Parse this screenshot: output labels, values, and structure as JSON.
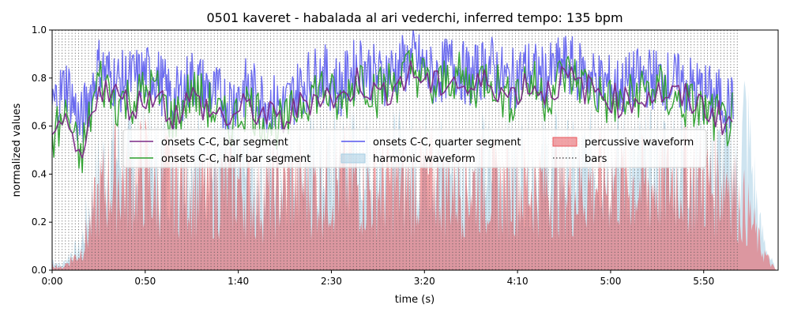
{
  "chart_data": {
    "type": "line",
    "title": "0501 kaveret - habalada al ari vederchi, inferred tempo: 135 bpm",
    "xlabel": "time (s)",
    "ylabel": "normalized values",
    "xlim": [
      0,
      390
    ],
    "ylim": [
      0,
      1.0
    ],
    "xticks": [
      {
        "value": 0,
        "label": "0:00"
      },
      {
        "value": 50,
        "label": "0:50"
      },
      {
        "value": 100,
        "label": "1:40"
      },
      {
        "value": 150,
        "label": "2:30"
      },
      {
        "value": 200,
        "label": "3:20"
      },
      {
        "value": 250,
        "label": "4:10"
      },
      {
        "value": 300,
        "label": "5:00"
      },
      {
        "value": 350,
        "label": "5:50"
      }
    ],
    "yticks": [
      {
        "value": 0.0,
        "label": "0.0"
      },
      {
        "value": 0.2,
        "label": "0.2"
      },
      {
        "value": 0.4,
        "label": "0.4"
      },
      {
        "value": 0.6,
        "label": "0.6"
      },
      {
        "value": 0.8,
        "label": "0.8"
      },
      {
        "value": 1.0,
        "label": "1.0"
      }
    ],
    "grid": false,
    "legend_position": "center",
    "duration_s": 389,
    "bar_period_s": 1.778,
    "series": [
      {
        "name": "onsets C-C, bar segment",
        "kind": "line",
        "color": "#7b2a86",
        "x": [
          0,
          8,
          15,
          25,
          35,
          45,
          55,
          65,
          75,
          85,
          95,
          105,
          115,
          125,
          135,
          145,
          155,
          165,
          175,
          185,
          195,
          205,
          215,
          225,
          235,
          245,
          255,
          265,
          275,
          285,
          295,
          305,
          315,
          325,
          335,
          345,
          355,
          362,
          366
        ],
        "values": [
          0.5,
          0.62,
          0.42,
          0.78,
          0.72,
          0.68,
          0.75,
          0.64,
          0.72,
          0.66,
          0.63,
          0.68,
          0.64,
          0.62,
          0.7,
          0.74,
          0.7,
          0.8,
          0.72,
          0.78,
          0.82,
          0.76,
          0.8,
          0.74,
          0.8,
          0.72,
          0.78,
          0.74,
          0.8,
          0.76,
          0.74,
          0.7,
          0.72,
          0.74,
          0.72,
          0.7,
          0.66,
          0.62,
          0.62
        ]
      },
      {
        "name": "onsets C-C, half bar segment",
        "kind": "line",
        "color": "#2ca02c",
        "x": [
          0,
          8,
          15,
          25,
          35,
          45,
          55,
          65,
          75,
          85,
          95,
          105,
          115,
          125,
          135,
          145,
          155,
          165,
          175,
          185,
          195,
          205,
          215,
          225,
          235,
          245,
          255,
          265,
          275,
          285,
          295,
          305,
          315,
          325,
          335,
          345,
          355,
          362,
          366
        ],
        "values": [
          0.55,
          0.65,
          0.45,
          0.8,
          0.7,
          0.72,
          0.76,
          0.62,
          0.75,
          0.68,
          0.6,
          0.7,
          0.62,
          0.6,
          0.72,
          0.76,
          0.68,
          0.82,
          0.74,
          0.8,
          0.84,
          0.74,
          0.82,
          0.76,
          0.82,
          0.7,
          0.8,
          0.72,
          0.82,
          0.78,
          0.72,
          0.68,
          0.74,
          0.76,
          0.7,
          0.68,
          0.64,
          0.6,
          0.64
        ]
      },
      {
        "name": "onsets C-C, quarter segment",
        "kind": "line",
        "color": "#5555ee",
        "x": [
          0,
          8,
          15,
          25,
          35,
          45,
          55,
          65,
          75,
          85,
          95,
          105,
          115,
          125,
          135,
          145,
          155,
          165,
          175,
          185,
          195,
          205,
          215,
          225,
          235,
          245,
          255,
          265,
          275,
          285,
          295,
          305,
          315,
          325,
          335,
          345,
          355,
          362,
          366
        ],
        "values": [
          0.68,
          0.78,
          0.6,
          0.85,
          0.78,
          0.8,
          0.82,
          0.7,
          0.8,
          0.74,
          0.7,
          0.76,
          0.7,
          0.68,
          0.78,
          0.82,
          0.76,
          0.86,
          0.8,
          0.84,
          0.88,
          0.8,
          0.86,
          0.8,
          0.86,
          0.78,
          0.84,
          0.8,
          0.86,
          0.82,
          0.78,
          0.76,
          0.8,
          0.8,
          0.78,
          0.76,
          0.72,
          0.7,
          0.68
        ]
      },
      {
        "name": "harmonic waveform",
        "kind": "area",
        "color": "#a6cee3",
        "x": [
          0,
          5,
          10,
          15,
          20,
          25,
          30,
          35,
          40,
          45,
          50,
          55,
          60,
          70,
          80,
          90,
          100,
          110,
          120,
          130,
          140,
          150,
          160,
          170,
          180,
          190,
          200,
          210,
          220,
          230,
          240,
          250,
          260,
          270,
          280,
          290,
          300,
          310,
          320,
          330,
          340,
          350,
          355,
          360,
          363,
          366,
          368,
          372,
          375,
          380,
          386,
          389
        ],
        "values": [
          0.05,
          0.02,
          0.08,
          0.1,
          0.3,
          0.45,
          0.5,
          0.55,
          0.48,
          0.5,
          0.55,
          0.46,
          0.52,
          0.55,
          0.5,
          0.48,
          0.5,
          0.42,
          0.46,
          0.5,
          0.48,
          0.5,
          0.52,
          0.46,
          0.5,
          0.48,
          0.52,
          0.5,
          0.48,
          0.5,
          0.46,
          0.5,
          0.48,
          0.5,
          0.46,
          0.5,
          0.52,
          0.5,
          0.48,
          0.52,
          0.55,
          0.5,
          0.48,
          0.52,
          0.6,
          0.5,
          0.4,
          0.7,
          0.55,
          0.2,
          0.05,
          0.0
        ]
      },
      {
        "name": "percussive waveform",
        "kind": "area",
        "color": "#e8585e",
        "x": [
          0,
          5,
          10,
          15,
          20,
          25,
          30,
          35,
          40,
          45,
          50,
          55,
          60,
          70,
          80,
          90,
          100,
          110,
          120,
          130,
          140,
          150,
          160,
          170,
          180,
          190,
          200,
          210,
          220,
          230,
          240,
          250,
          260,
          270,
          280,
          290,
          300,
          310,
          320,
          330,
          340,
          350,
          355,
          360,
          363,
          366,
          368,
          372,
          375,
          380,
          386,
          389
        ],
        "values": [
          0.03,
          0.01,
          0.05,
          0.08,
          0.2,
          0.35,
          0.42,
          0.46,
          0.4,
          0.44,
          0.48,
          0.36,
          0.44,
          0.42,
          0.38,
          0.4,
          0.42,
          0.34,
          0.38,
          0.42,
          0.4,
          0.42,
          0.44,
          0.38,
          0.42,
          0.4,
          0.44,
          0.42,
          0.4,
          0.42,
          0.38,
          0.42,
          0.4,
          0.42,
          0.38,
          0.42,
          0.44,
          0.42,
          0.4,
          0.44,
          0.46,
          0.42,
          0.4,
          0.44,
          0.48,
          0.42,
          0.34,
          0.3,
          0.25,
          0.12,
          0.03,
          0.0
        ]
      },
      {
        "name": "bars",
        "kind": "vlines",
        "color": "#555555"
      }
    ],
    "legend": [
      {
        "label": "onsets C-C, bar segment",
        "kind": "line",
        "color": "#7b2a86"
      },
      {
        "label": "onsets C-C, half bar segment",
        "kind": "line",
        "color": "#2ca02c"
      },
      {
        "label": "onsets C-C, quarter segment",
        "kind": "line",
        "color": "#5555ee"
      },
      {
        "label": "harmonic waveform",
        "kind": "patch",
        "color": "#a6cee3"
      },
      {
        "label": "percussive waveform",
        "kind": "patch",
        "color": "#e8585e"
      },
      {
        "label": "bars",
        "kind": "dotted",
        "color": "#555555"
      }
    ]
  }
}
